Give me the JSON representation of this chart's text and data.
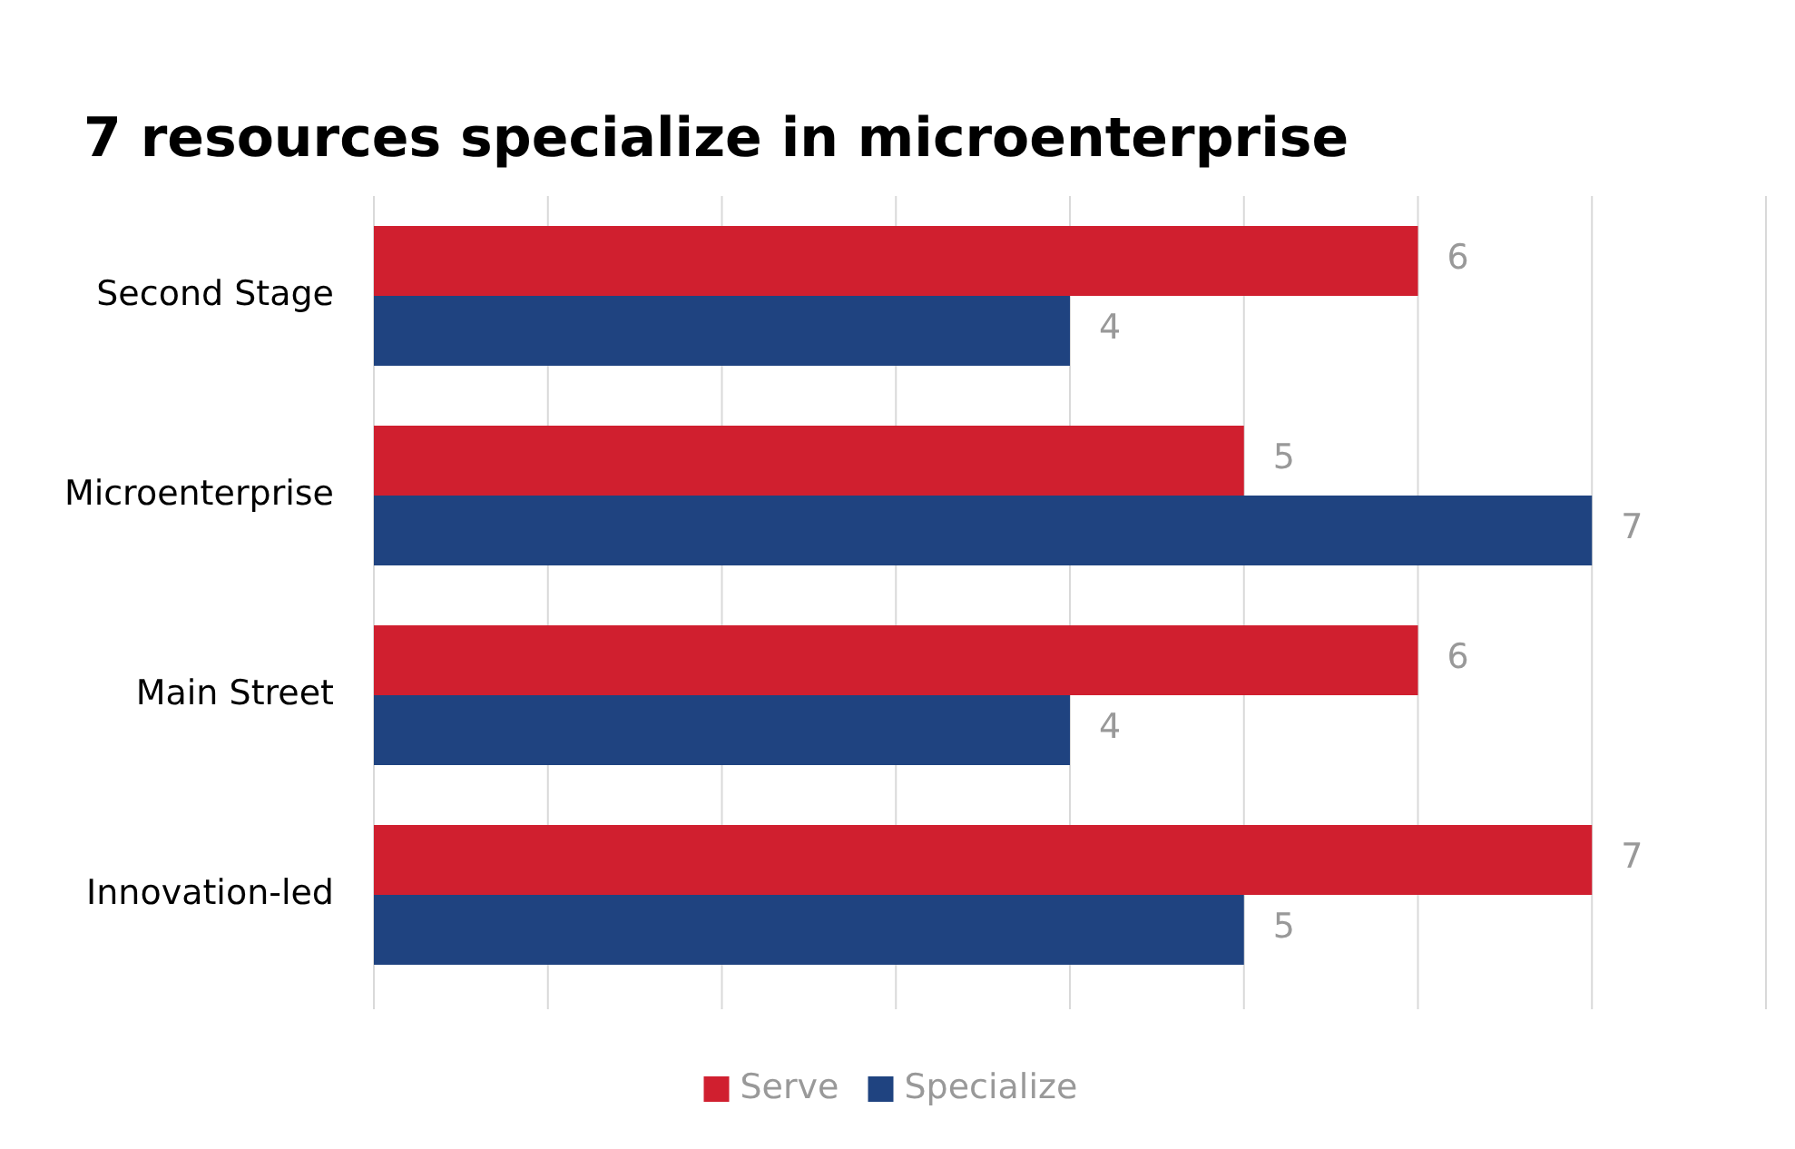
{
  "chart_data": {
    "type": "bar",
    "orientation": "horizontal",
    "title": "7 resources specialize in microenterprise",
    "categories": [
      "Second Stage",
      "Microenterprise",
      "Main Street",
      "Innovation-led"
    ],
    "series": [
      {
        "name": "Serve",
        "color": "#d01f2f",
        "values": [
          6,
          5,
          6,
          7
        ]
      },
      {
        "name": "Specialize",
        "color": "#1f4380",
        "values": [
          4,
          7,
          4,
          5
        ]
      }
    ],
    "xlim": [
      0,
      8
    ],
    "xticks": [
      {
        "value": 0,
        "label": null
      },
      {
        "value": 1,
        "label": null
      },
      {
        "value": 2,
        "label": null
      },
      {
        "value": 3,
        "label": null
      },
      {
        "value": 4,
        "label": null
      },
      {
        "value": 5,
        "label": null
      },
      {
        "value": 6,
        "label": null
      },
      {
        "value": 7,
        "label": null
      },
      {
        "value": 8,
        "label": null
      }
    ],
    "tick_labels": "y",
    "grid": "x",
    "legend": "bottom",
    "data_labels": true
  }
}
